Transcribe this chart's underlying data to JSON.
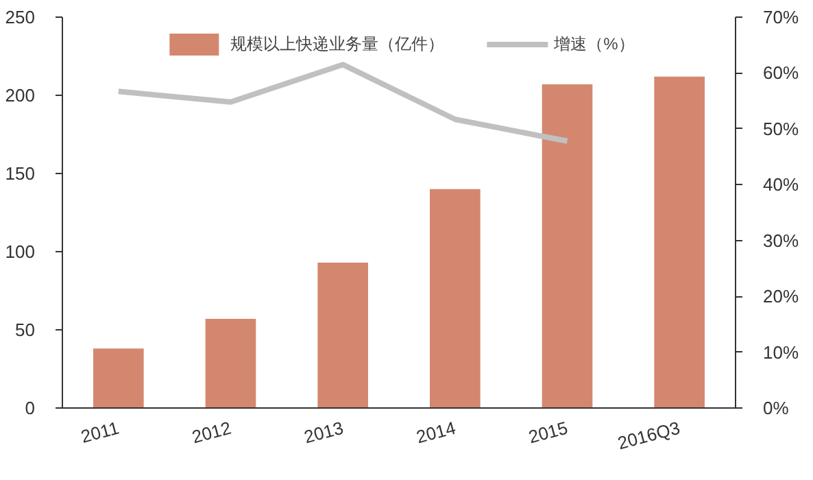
{
  "chart_data": {
    "type": "bar",
    "categories": [
      "2011",
      "2012",
      "2013",
      "2014",
      "2015",
      "2016Q3"
    ],
    "series": [
      {
        "name": "规模以上快递业务量（亿件）",
        "color": "#d4876f",
        "values": [
          38,
          57,
          93,
          140,
          207,
          212
        ]
      },
      {
        "name": "增速（%）",
        "type": "line",
        "axis": "y2",
        "color": "#c0c0c0",
        "values": [
          56.7,
          54.8,
          61.5,
          51.7,
          47.8,
          null
        ]
      }
    ],
    "ylim": [
      0,
      250
    ],
    "yticks": [
      0,
      50,
      100,
      150,
      200,
      250
    ],
    "y2lim": [
      0,
      70
    ],
    "y2ticks": [
      {
        "value": 0,
        "label": "0%"
      },
      {
        "value": 10,
        "label": "10%"
      },
      {
        "value": 20,
        "label": "20%"
      },
      {
        "value": 30,
        "label": "30%"
      },
      {
        "value": 40,
        "label": "40%"
      },
      {
        "value": 50,
        "label": "50%"
      },
      {
        "value": 60,
        "label": "60%"
      },
      {
        "value": 70,
        "label": "70%"
      }
    ],
    "legend": "top"
  }
}
